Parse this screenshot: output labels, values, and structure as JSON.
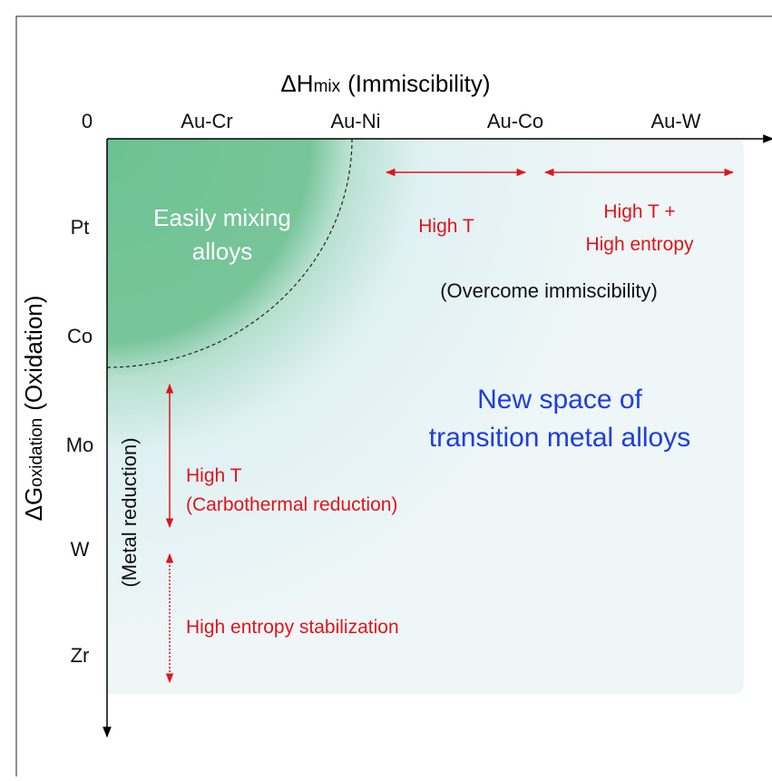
{
  "x_axis": {
    "symbol": "ΔH",
    "subscript": "mix",
    "label": "(Immiscibility)",
    "origin": "0",
    "categories": [
      "Au-Cr",
      "Au-Ni",
      "Au-Co",
      "Au-W"
    ]
  },
  "y_axis": {
    "symbol": "ΔG",
    "subscript": "oxidation",
    "label": "(Oxidation)",
    "categories": [
      "Pt",
      "Co",
      "Mo",
      "W",
      "Zr"
    ]
  },
  "regions": {
    "easy_mixing": [
      "Easily mixing",
      "alloys"
    ],
    "new_space": [
      "New space of",
      "transition metal alloys"
    ]
  },
  "annotations": {
    "high_t_x": "High T",
    "high_t_entropy": [
      "High T +",
      "High entropy"
    ],
    "overcome": "(Overcome immiscibility)",
    "metal_reduction": "(Metal reduction)",
    "carbothermal": [
      "High T",
      "(Carbothermal reduction)"
    ],
    "entropy_stabilization": "High entropy stabilization"
  }
}
